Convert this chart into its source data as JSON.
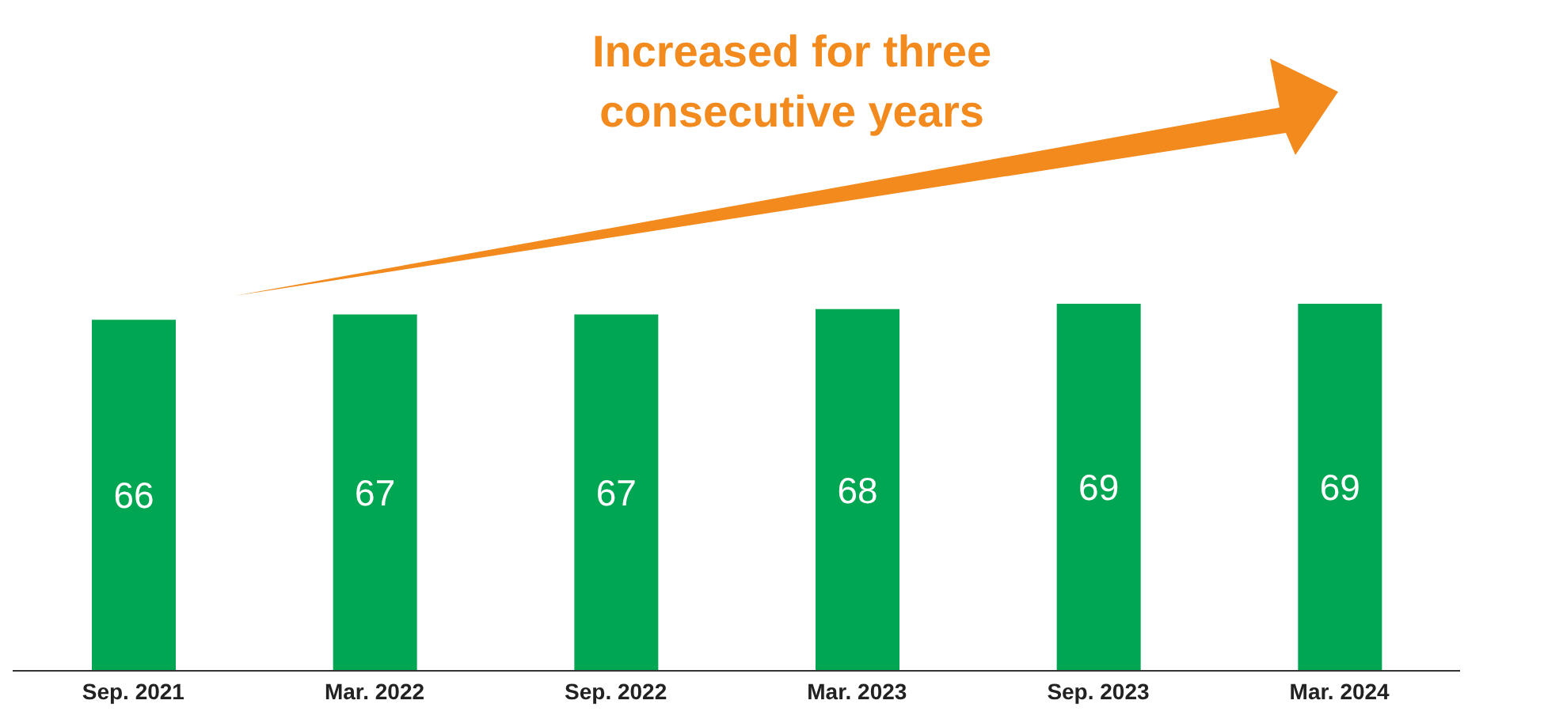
{
  "chart_data": {
    "type": "bar",
    "categories": [
      "Sep. 2021",
      "Mar. 2022",
      "Sep. 2022",
      "Mar. 2023",
      "Sep. 2023",
      "Mar. 2024"
    ],
    "values": [
      66,
      67,
      67,
      68,
      69,
      69
    ],
    "color": "#00a651",
    "tick_labels": "x",
    "data_labels": true,
    "annotations": [
      "Increased for three consecutive years"
    ]
  }
}
